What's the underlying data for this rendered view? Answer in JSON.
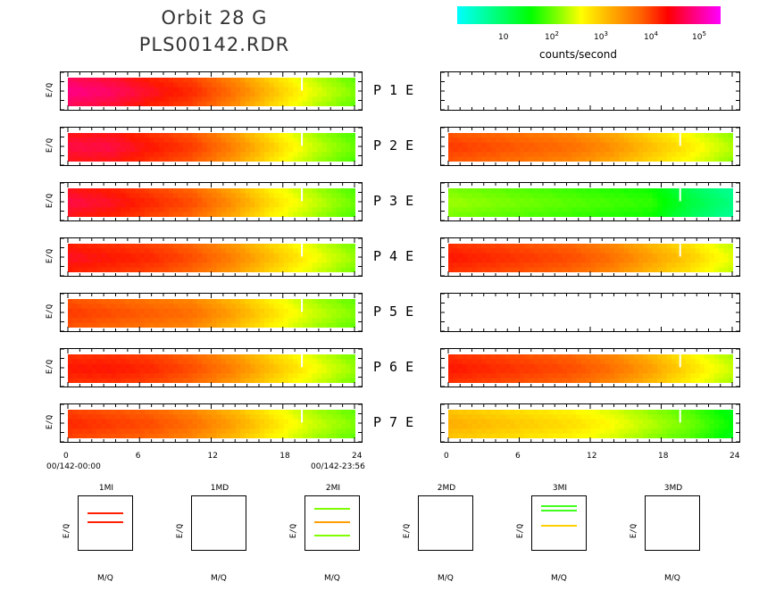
{
  "header": {
    "title_line1": "Orbit 28 G",
    "title_line2": "PLS00142.RDR"
  },
  "colorbar": {
    "label": "counts/second",
    "ticks": [
      {
        "base": "10",
        "exp": ""
      },
      {
        "base": "10",
        "exp": "2"
      },
      {
        "base": "10",
        "exp": "3"
      },
      {
        "base": "10",
        "exp": "4"
      },
      {
        "base": "10",
        "exp": "5"
      }
    ],
    "colors": [
      "#00ffff",
      "#00ff00",
      "#ffff00",
      "#ff6000",
      "#ff0000",
      "#ff00ff"
    ]
  },
  "panels": {
    "ylabel": "E/Q",
    "rows": [
      {
        "p": "P",
        "n": "1",
        "e": "E"
      },
      {
        "p": "P",
        "n": "2",
        "e": "E"
      },
      {
        "p": "P",
        "n": "3",
        "e": "E"
      },
      {
        "p": "P",
        "n": "4",
        "e": "E"
      },
      {
        "p": "P",
        "n": "5",
        "e": "E"
      },
      {
        "p": "P",
        "n": "6",
        "e": "E"
      },
      {
        "p": "P",
        "n": "7",
        "e": "E"
      }
    ]
  },
  "axes": {
    "x_ticks": [
      "0",
      "6",
      "12",
      "18",
      "24"
    ],
    "time_start": "00/142-00:00",
    "time_end": "00/142-23:56"
  },
  "mass_panels": {
    "ylabel": "E/Q",
    "xlabel": "M/Q",
    "items": [
      {
        "title": "1MI"
      },
      {
        "title": "1MD"
      },
      {
        "title": "2MI"
      },
      {
        "title": "2MD"
      },
      {
        "title": "3MI"
      },
      {
        "title": "3MD"
      }
    ]
  },
  "chart_data": {
    "type": "heatmap",
    "title": "Orbit 28 G",
    "subtitle": "PLS00142.RDR",
    "colorbar_label": "counts/second",
    "colorbar_scale": "log",
    "colorbar_range": [
      1,
      500000
    ],
    "xlim": [
      0,
      24
    ],
    "x_ticks": [
      0,
      6,
      12,
      18,
      24
    ],
    "ylabel": "E/Q",
    "grid": false,
    "left_column": {
      "rows": [
        "P 1",
        "P 2",
        "P 3",
        "P 4",
        "P 5",
        "P 6",
        "P 7"
      ],
      "log_rate_by_hour": [
        [
          4.6,
          4.5,
          4.3,
          4.1,
          3.7,
          3.2,
          2.7,
          2.3
        ],
        [
          4.4,
          4.4,
          4.2,
          4.0,
          3.6,
          3.1,
          2.6,
          2.2
        ],
        [
          4.4,
          4.3,
          4.1,
          3.9,
          3.5,
          3.0,
          2.6,
          2.2
        ],
        [
          4.3,
          4.2,
          4.1,
          3.9,
          3.6,
          3.2,
          2.8,
          2.4
        ],
        [
          4.0,
          3.9,
          3.8,
          3.7,
          3.4,
          3.0,
          2.6,
          2.3
        ],
        [
          4.2,
          4.2,
          4.1,
          3.9,
          3.6,
          3.2,
          2.8,
          2.4
        ],
        [
          4.1,
          4.0,
          3.9,
          3.7,
          3.4,
          3.0,
          2.6,
          2.3
        ]
      ]
    },
    "right_column": {
      "rows": [
        "E 1",
        "E 2",
        "E 3",
        "E 4",
        "E 5",
        "E 6",
        "E 7"
      ],
      "log_rate_by_hour": [
        null,
        [
          4.0,
          3.9,
          3.8,
          3.7,
          3.5,
          3.2,
          2.9,
          2.5
        ],
        [
          2.4,
          2.3,
          2.2,
          2.1,
          2.0,
          1.9,
          1.3,
          0.9
        ],
        [
          4.2,
          4.1,
          4.0,
          3.9,
          3.7,
          3.4,
          3.1,
          2.7
        ],
        null,
        [
          4.2,
          4.1,
          4.0,
          3.9,
          3.7,
          3.4,
          3.0,
          2.6
        ],
        [
          3.3,
          3.2,
          3.1,
          3.0,
          2.8,
          2.5,
          2.2,
          1.7
        ]
      ]
    },
    "hours_sampled": [
      0,
      3,
      6,
      9,
      12,
      15,
      18,
      21
    ]
  }
}
